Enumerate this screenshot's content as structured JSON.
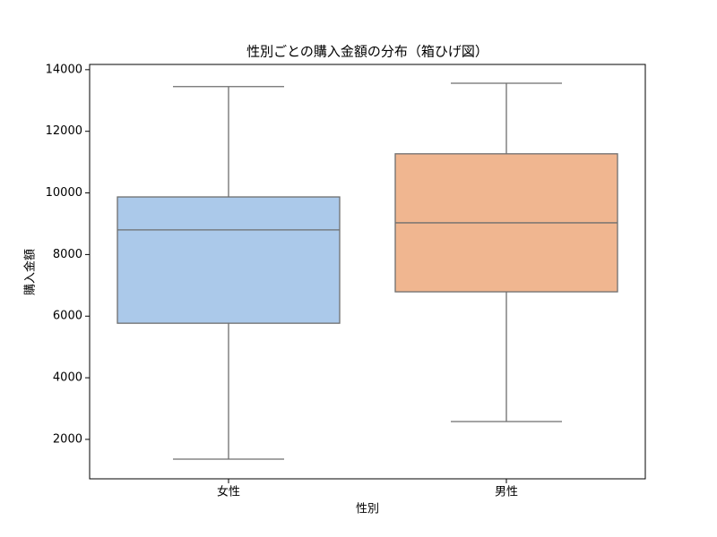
{
  "chart_data": {
    "type": "box",
    "title": "性別ごとの購入金額の分布（箱ひげ図）",
    "x_label": "性別",
    "y_label": "購入金額",
    "categories": [
      "女性",
      "男性"
    ],
    "colors": [
      "#abc9ea",
      "#f0b690"
    ],
    "whisker_low": [
      1360,
      2580
    ],
    "q1": [
      5770,
      6790
    ],
    "median": [
      8800,
      9030
    ],
    "q3": [
      9870,
      11270
    ],
    "whisker_high": [
      13450,
      13560
    ],
    "ylim": [
      720,
      14170
    ],
    "yticks": [
      2000,
      4000,
      6000,
      8000,
      10000,
      12000,
      14000
    ],
    "grid": false
  }
}
